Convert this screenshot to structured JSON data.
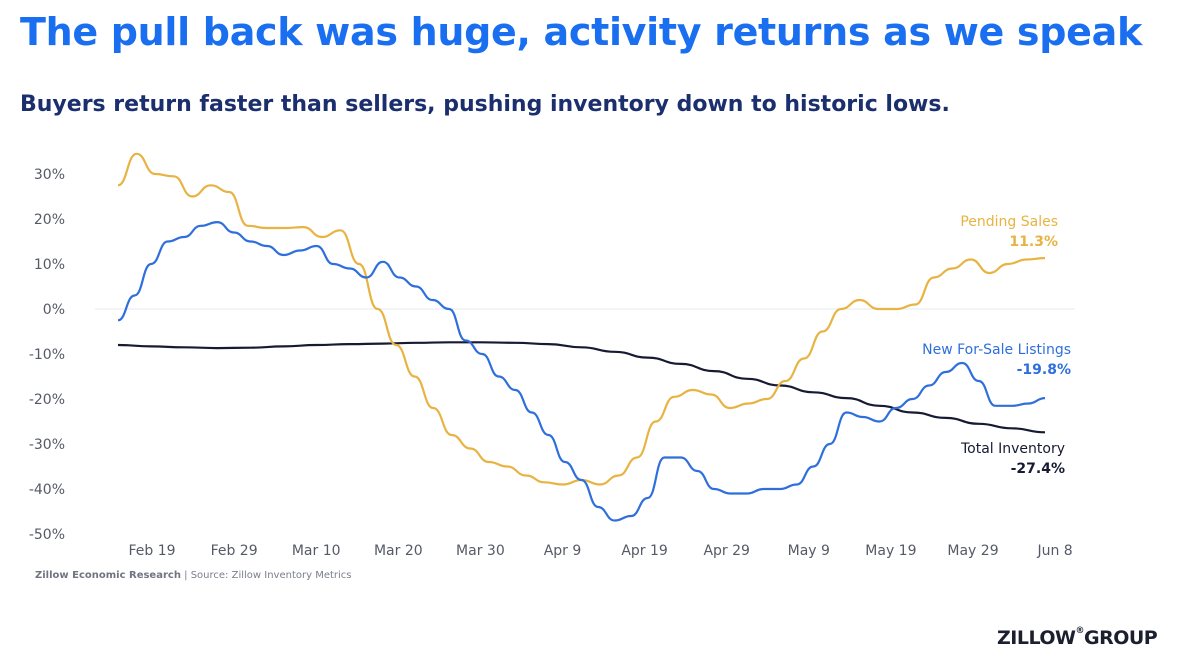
{
  "title": "The pull back was huge, activity returns as we speak",
  "subtitle": "Buyers return faster than sellers, pushing inventory down to historic lows.",
  "source": {
    "org": "Zillow Economic Research",
    "separator": "|",
    "text": "Source: Zillow Inventory Metrics"
  },
  "logo": {
    "wordmark": "ZILLOW",
    "mark": "®",
    "suffix": "GROUP"
  },
  "chart_data": {
    "type": "line",
    "x_tick_labels": [
      "Feb 19",
      "Feb 29",
      "Mar 10",
      "Mar 20",
      "Mar 30",
      "Apr 9",
      "Apr 19",
      "Apr 29",
      "May 9",
      "May 19",
      "May 29",
      "Jun 8"
    ],
    "y_tick_labels": [
      "30%",
      "20%",
      "10%",
      "0%",
      "-10%",
      "-20%",
      "-30%",
      "-40%",
      "-50%"
    ],
    "y_ticks": [
      30,
      20,
      10,
      0,
      -10,
      -20,
      -30,
      -40,
      -50
    ],
    "ylim": [
      -50,
      30
    ],
    "zero_gridline": true,
    "x_start": "2020-02-14",
    "x_end": "2020-06-06",
    "series": [
      {
        "name": "Pending Sales",
        "end_label": "11.3%",
        "color": "#e8b342",
        "values": [
          27.5,
          34.5,
          30,
          29.5,
          25,
          27.5,
          26,
          18.5,
          18,
          18,
          18.2,
          16,
          17.5,
          10,
          0,
          -8,
          -15,
          -22,
          -28,
          -31,
          -34,
          -35,
          -37,
          -38.5,
          -39,
          -38,
          -39,
          -37,
          -33,
          -25,
          -19.5,
          -18,
          -19,
          -22,
          -21,
          -20,
          -16,
          -11,
          -5,
          0,
          2,
          0,
          0,
          1,
          7,
          9,
          11,
          8,
          10,
          11,
          11.3
        ],
        "color_name": "gold"
      },
      {
        "name": "New For-Sale Listings",
        "end_label": "-19.8%",
        "color": "#2f6fdc",
        "values": [
          -2.5,
          3,
          10,
          15,
          16,
          18.5,
          19.3,
          17,
          15,
          14,
          12,
          13,
          14,
          10,
          9,
          7,
          10.5,
          7,
          5,
          2,
          0,
          -7,
          -10,
          -15,
          -18,
          -23,
          -28,
          -34,
          -38,
          -44,
          -47,
          -46,
          -42,
          -33,
          -33,
          -36,
          -40,
          -41,
          -41,
          -40,
          -40,
          -39,
          -35,
          -30,
          -23,
          -24,
          -25,
          -22,
          -20,
          -17,
          -14,
          -12,
          -16,
          -21.5,
          -21.5,
          -21,
          -19.8
        ],
        "color_name": "blue"
      },
      {
        "name": "Total Inventory",
        "end_label": "-27.4%",
        "color": "#161a33",
        "values": [
          -8,
          -8.3,
          -8.5,
          -8.7,
          -8.6,
          -8.3,
          -8,
          -7.8,
          -7.7,
          -7.5,
          -7.4,
          -7.4,
          -7.5,
          -7.8,
          -8.5,
          -9.5,
          -10.8,
          -12.2,
          -13.8,
          -15.5,
          -17,
          -18.5,
          -19.8,
          -21.5,
          -23,
          -24.2,
          -25.5,
          -26.5,
          -27.4
        ],
        "color_name": "navy"
      }
    ]
  }
}
